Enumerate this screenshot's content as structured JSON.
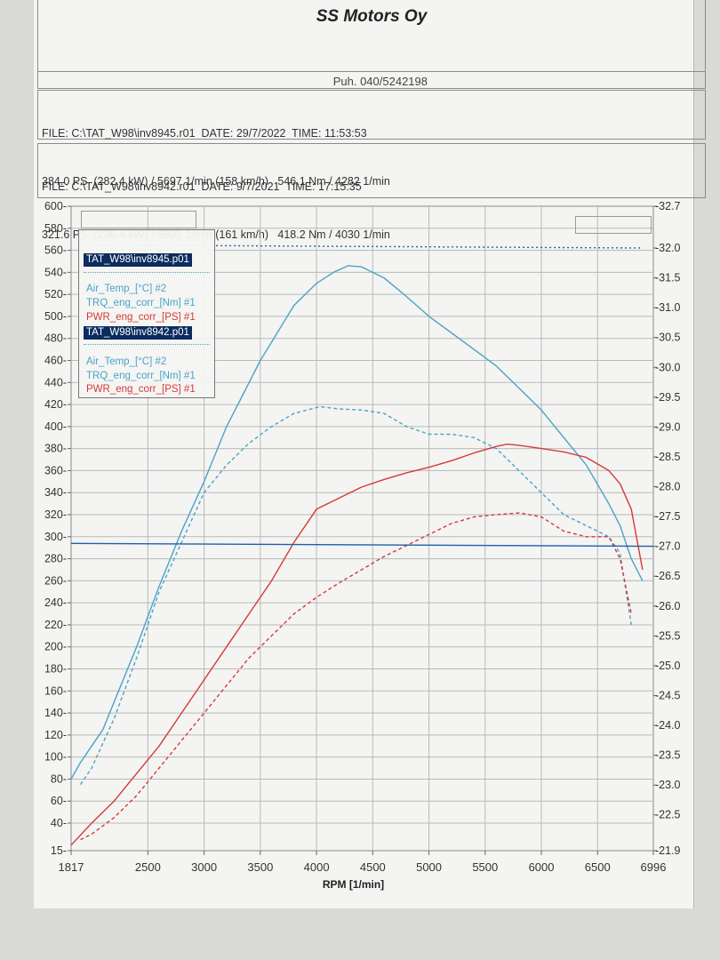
{
  "header": {
    "company": "SS Motors Oy",
    "phone": "Puh. 040/5242198"
  },
  "files": [
    {
      "line1": "FILE: C:\\TAT_W98\\inv8945.r01  DATE: 29/7/2022  TIME: 11:53:53",
      "line2": "384.0 PS  (282.4 kW) / 5697 1/min (158 km/h)   546.1 Nm / 4282 1/min"
    },
    {
      "line1": "FILE: C:\\TAT_W98\\inv8942.r01  DATE: 9/7/2021  TIME: 17:15:35",
      "line2": "321.6 PS  (236.4 kW) / 5805 1/min (161 km/h)   418.2 Nm / 4030 1/min"
    }
  ],
  "legend": {
    "file1": "TAT_W98\\inv8945.p01",
    "file1_items": [
      "Air_Temp_[°C] #2",
      "TRQ_eng_corr_[Nm] #1",
      "PWR_eng_corr_[PS] #1"
    ],
    "file2": "TAT_W98\\inv8942.p01",
    "file2_items": [
      "Air_Temp_[°C] #2",
      "TRQ_eng_corr_[Nm] #1",
      "PWR_eng_corr_[PS] #1"
    ]
  },
  "colors": {
    "torque": "#4aa3c8",
    "power": "#d43a3a",
    "air_temp_line": "#1f5fa8",
    "grid": "#b9b9b9"
  },
  "chart_data": {
    "type": "line",
    "xlabel": "RPM  [1/min]",
    "xlim": [
      1817,
      6996
    ],
    "x_ticks": [
      1817,
      2500,
      3000,
      3500,
      4000,
      4500,
      5000,
      5500,
      6000,
      6500,
      6996
    ],
    "x_tick_labels": [
      "1817",
      "2500",
      "3000",
      "3500",
      "4000",
      "4500",
      "5000",
      "5500",
      "6000",
      "6500",
      "6996"
    ],
    "ylim_left": [
      15,
      600
    ],
    "y_left_ticks": [
      15,
      40,
      60,
      80,
      100,
      120,
      140,
      160,
      180,
      200,
      220,
      240,
      260,
      280,
      300,
      320,
      340,
      360,
      380,
      400,
      420,
      440,
      460,
      480,
      500,
      520,
      540,
      560,
      580,
      600
    ],
    "y_left_tick_labels": [
      "15",
      "40",
      "60",
      "80",
      "100",
      "120",
      "140",
      "160",
      "180",
      "200",
      "220",
      "240",
      "260",
      "280",
      "300",
      "320",
      "340",
      "360",
      "380",
      "400",
      "420",
      "440",
      "460",
      "480",
      "500",
      "520",
      "540",
      "560",
      "580",
      "600"
    ],
    "ylim_right": [
      21.9,
      32.7
    ],
    "y_right_ticks": [
      21.9,
      22.5,
      23.0,
      23.5,
      24.0,
      24.5,
      25.0,
      25.5,
      26.0,
      26.5,
      27.0,
      27.5,
      28.0,
      28.5,
      29.0,
      29.5,
      30.0,
      30.5,
      31.0,
      31.5,
      32.0,
      32.7
    ],
    "y_right_tick_labels": [
      "21.9",
      "22.5",
      "23.0",
      "23.5",
      "24.0",
      "24.5",
      "25.0",
      "25.5",
      "26.0",
      "26.5",
      "27.0",
      "27.5",
      "28.0",
      "28.5",
      "29.0",
      "29.5",
      "30.0",
      "30.5",
      "31.0",
      "31.5",
      "32.0",
      "32.7"
    ],
    "grid": true,
    "series": [
      {
        "name": "TRQ_eng_corr_[Nm] #1",
        "file": "inv8945",
        "axis": "left",
        "color": "#4aa3c8",
        "dash": "solid",
        "x": [
          1817,
          1900,
          2000,
          2100,
          2200,
          2400,
          2600,
          2800,
          3000,
          3200,
          3500,
          3800,
          4000,
          4150,
          4282,
          4400,
          4600,
          4800,
          5000,
          5200,
          5400,
          5600,
          5800,
          6000,
          6200,
          6400,
          6600,
          6700,
          6800,
          6900
        ],
        "y": [
          80,
          95,
          110,
          125,
          150,
          200,
          255,
          305,
          350,
          400,
          460,
          510,
          530,
          540,
          546,
          545,
          535,
          518,
          500,
          485,
          470,
          455,
          435,
          415,
          390,
          365,
          330,
          310,
          280,
          260
        ]
      },
      {
        "name": "PWR_eng_corr_[PS] #1",
        "file": "inv8945",
        "axis": "left",
        "color": "#d43a3a",
        "dash": "solid",
        "x": [
          1817,
          2000,
          2200,
          2400,
          2600,
          2800,
          3000,
          3200,
          3400,
          3600,
          3800,
          4000,
          4200,
          4400,
          4600,
          4800,
          5000,
          5200,
          5400,
          5600,
          5697,
          5800,
          6000,
          6200,
          6400,
          6600,
          6700,
          6800,
          6900
        ],
        "y": [
          20,
          40,
          60,
          85,
          110,
          140,
          170,
          200,
          230,
          260,
          295,
          325,
          335,
          345,
          352,
          358,
          363,
          369,
          376,
          382,
          384,
          383,
          380,
          377,
          372,
          360,
          348,
          325,
          270
        ]
      },
      {
        "name": "TRQ_eng_corr_[Nm] #1",
        "file": "inv8942",
        "axis": "left",
        "color": "#4aa3c8",
        "dash": "dashed",
        "x": [
          1900,
          2000,
          2200,
          2400,
          2600,
          2800,
          3000,
          3200,
          3400,
          3600,
          3800,
          4030,
          4200,
          4400,
          4600,
          4800,
          5000,
          5200,
          5400,
          5600,
          5800,
          6000,
          6200,
          6400,
          6600,
          6700,
          6800
        ],
        "y": [
          75,
          90,
          135,
          190,
          250,
          295,
          340,
          365,
          385,
          400,
          412,
          418,
          416,
          415,
          412,
          400,
          393,
          393,
          390,
          380,
          360,
          340,
          320,
          310,
          300,
          285,
          220
        ]
      },
      {
        "name": "PWR_eng_corr_[PS] #1",
        "file": "inv8942",
        "axis": "left",
        "color": "#d43a3a",
        "dash": "dashed",
        "x": [
          1900,
          2000,
          2200,
          2400,
          2600,
          2800,
          3000,
          3200,
          3400,
          3600,
          3800,
          4000,
          4200,
          4400,
          4600,
          4800,
          5000,
          5200,
          5400,
          5600,
          5805,
          6000,
          6200,
          6400,
          6600,
          6700,
          6800
        ],
        "y": [
          25,
          30,
          45,
          65,
          90,
          115,
          140,
          165,
          190,
          210,
          230,
          245,
          258,
          270,
          282,
          292,
          302,
          312,
          318,
          320,
          321.6,
          318,
          305,
          300,
          300,
          280,
          230
        ]
      },
      {
        "name": "Air_Temp_[°C] #2",
        "file": "inv8945",
        "axis": "right",
        "color": "#1f5fa8",
        "dash": "solid",
        "x": [
          1817,
          6996
        ],
        "y": [
          27.05,
          27.0
        ]
      },
      {
        "name": "Air_Temp_[°C] #2",
        "file": "inv8942",
        "axis": "right",
        "color": "#1f5fa8",
        "dash": "dotted",
        "x": [
          2000,
          6900
        ],
        "y": [
          32.05,
          32.0
        ]
      }
    ]
  }
}
